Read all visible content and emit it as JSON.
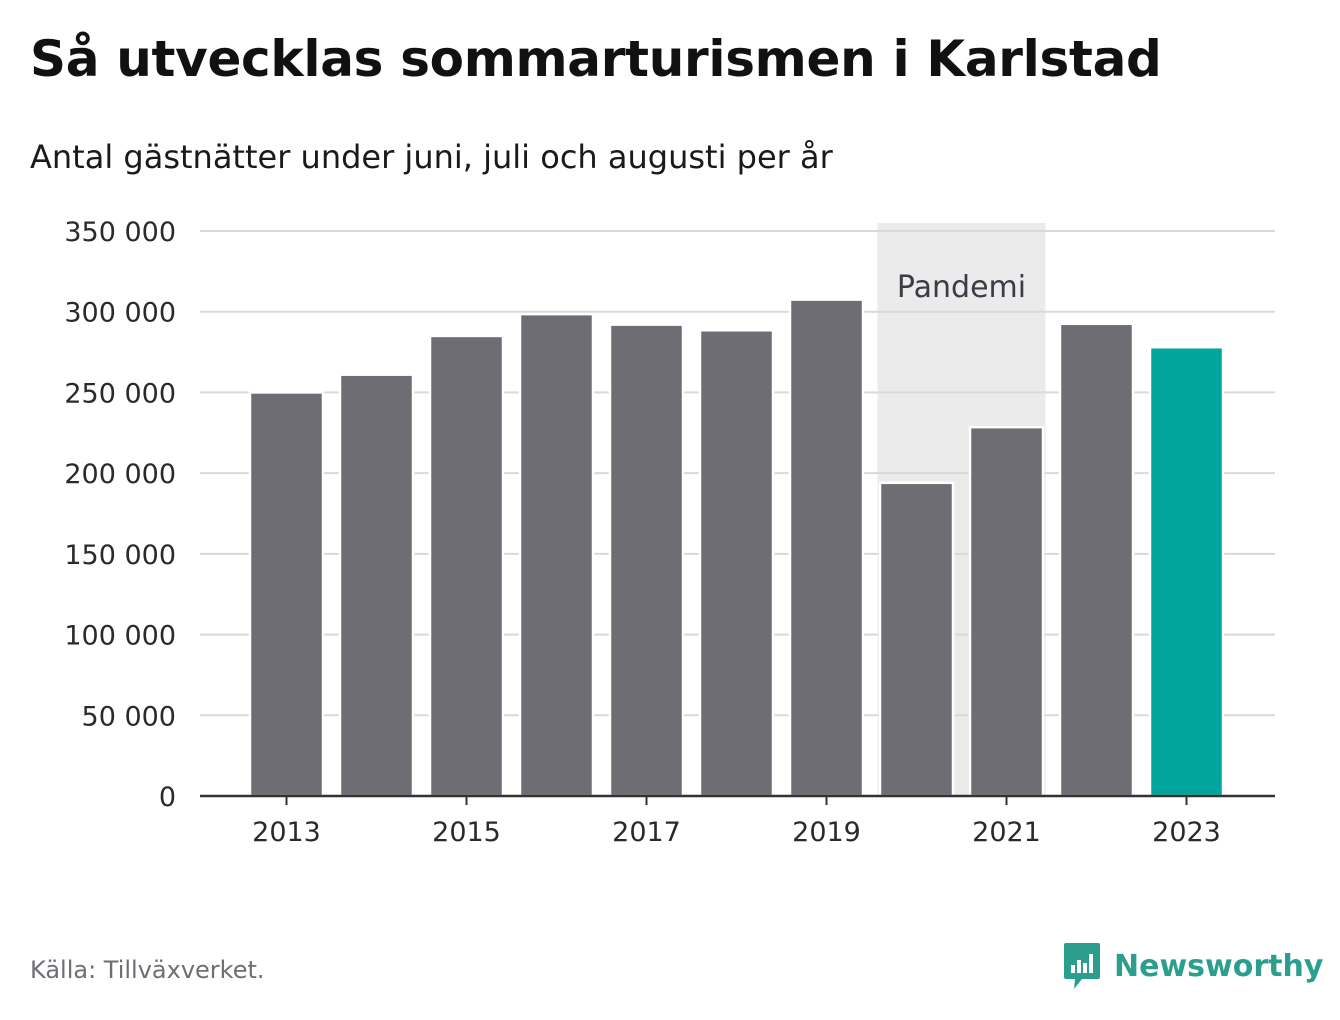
{
  "title": "Så utvecklas sommarturismen i Karlstad",
  "subtitle": "Antal gästnätter under juni, juli och augusti per år",
  "source": "Källa: Tillväxverket.",
  "brand": {
    "name": "Newsworthy",
    "icon": "newsworthy-logo-icon",
    "color": "#2b9e8e"
  },
  "colors": {
    "bar": "#6e6d73",
    "highlight": "#00a69b",
    "shade": "#ebebeb",
    "grid": "#d9d9d9",
    "axis": "#333333"
  },
  "chart_data": {
    "type": "bar",
    "categories": [
      "2013",
      "2014",
      "2015",
      "2016",
      "2017",
      "2018",
      "2019",
      "2020",
      "2021",
      "2022",
      "2023"
    ],
    "values": [
      250000,
      261000,
      285000,
      298500,
      292000,
      288500,
      307500,
      194000,
      228500,
      292500,
      278000
    ],
    "highlight_category": "2023",
    "ylim": [
      0,
      350000
    ],
    "yticks": [
      0,
      50000,
      100000,
      150000,
      200000,
      250000,
      300000,
      350000
    ],
    "ytick_labels": [
      "0",
      "50 000",
      "100 000",
      "150 000",
      "200 000",
      "250 000",
      "300 000",
      "350 000"
    ],
    "xtick_labels": [
      "2013",
      "2015",
      "2017",
      "2019",
      "2021",
      "2023"
    ],
    "grid": true,
    "xlabel": "",
    "ylabel": "",
    "annotation": {
      "label": "Pandemi",
      "from": "2020",
      "to": "2021"
    }
  }
}
